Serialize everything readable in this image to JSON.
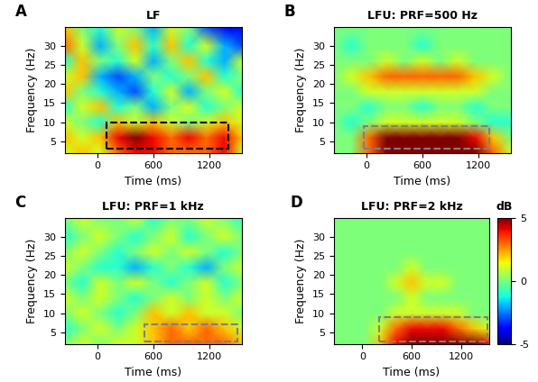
{
  "chart_data": [
    {
      "type": "heatmap",
      "label": "A",
      "title": "LF",
      "xlabel": "Time (ms)",
      "ylabel": "Frequency (Hz)",
      "x": [
        -350,
        -160,
        30,
        220,
        410,
        600,
        790,
        980,
        1170,
        1360,
        1550
      ],
      "y": [
        2,
        6,
        10,
        14,
        18,
        22,
        26,
        30,
        35
      ],
      "cells": [
        [
          1,
          2,
          1,
          3,
          4,
          4,
          3,
          3,
          3,
          4,
          1
        ],
        [
          2,
          1,
          2,
          4,
          5,
          4,
          3,
          4,
          3,
          4,
          2
        ],
        [
          1,
          0,
          -1,
          2,
          1,
          2,
          1,
          0,
          1,
          2,
          1
        ],
        [
          -1,
          1,
          2,
          -1,
          0,
          -2,
          0,
          1,
          -1,
          0,
          1
        ],
        [
          2,
          0,
          -1,
          -2,
          -3,
          -1,
          1,
          -2,
          0,
          1,
          -1
        ],
        [
          1,
          2,
          -2,
          -3,
          -2,
          0,
          -1,
          0,
          2,
          -1,
          0
        ],
        [
          -1,
          2,
          0,
          -1,
          1,
          -2,
          0,
          2,
          -1,
          -2,
          1
        ],
        [
          3,
          1,
          -2,
          0,
          2,
          -1,
          2,
          -1,
          1,
          -2,
          -3
        ],
        [
          2,
          0,
          -1,
          1,
          0,
          -2,
          1,
          0,
          -3,
          -4,
          -4
        ]
      ],
      "clim": [
        -5,
        5
      ],
      "xlim": [
        -350,
        1550
      ],
      "ylim": [
        2,
        35
      ],
      "xticks": [
        0,
        600,
        1200
      ],
      "yticks": [
        5,
        10,
        15,
        20,
        25,
        30
      ],
      "box": {
        "x": [
          100,
          1400
        ],
        "y": [
          3,
          10
        ],
        "color": "#000000"
      }
    },
    {
      "type": "heatmap",
      "label": "B",
      "title": "LFU: PRF=500 Hz",
      "xlabel": "Time (ms)",
      "ylabel": "Frequency (Hz)",
      "x": [
        -350,
        -160,
        30,
        220,
        410,
        600,
        790,
        980,
        1170,
        1360,
        1550
      ],
      "y": [
        2,
        6,
        10,
        14,
        18,
        22,
        26,
        30,
        35
      ],
      "cells": [
        [
          0,
          0,
          3,
          5,
          5,
          5,
          5,
          5,
          5,
          3,
          1
        ],
        [
          0,
          0,
          3,
          5,
          5,
          5,
          5,
          5,
          4,
          2,
          0
        ],
        [
          0,
          -1,
          0,
          1,
          1,
          1,
          1,
          1,
          0,
          -1,
          -1
        ],
        [
          0,
          0,
          -1,
          0,
          0,
          -1,
          0,
          0,
          -1,
          0,
          0
        ],
        [
          0,
          0,
          1,
          1,
          1,
          1,
          1,
          1,
          1,
          0,
          0
        ],
        [
          0,
          1,
          2,
          3,
          3,
          3,
          3,
          3,
          2,
          1,
          0
        ],
        [
          0,
          0,
          0,
          1,
          0,
          1,
          0,
          1,
          0,
          0,
          0
        ],
        [
          0,
          -1,
          0,
          0,
          0,
          -1,
          0,
          0,
          0,
          0,
          0
        ],
        [
          0,
          0,
          0,
          0,
          0,
          0,
          0,
          0,
          0,
          0,
          0
        ]
      ],
      "clim": [
        -5,
        5
      ],
      "xlim": [
        -350,
        1550
      ],
      "ylim": [
        2,
        35
      ],
      "xticks": [
        0,
        600,
        1200
      ],
      "yticks": [
        5,
        10,
        15,
        20,
        25,
        30
      ],
      "box": {
        "x": [
          -30,
          1320
        ],
        "y": [
          3,
          9
        ],
        "color": "#808080"
      }
    },
    {
      "type": "heatmap",
      "label": "C",
      "title": "LFU: PRF=1 kHz",
      "xlabel": "Time (ms)",
      "ylabel": "Frequency (Hz)",
      "x": [
        -350,
        -160,
        30,
        220,
        410,
        600,
        790,
        980,
        1170,
        1360,
        1550
      ],
      "y": [
        2,
        6,
        10,
        14,
        18,
        22,
        26,
        30,
        35
      ],
      "cells": [
        [
          0,
          1,
          0,
          1,
          1,
          2,
          3,
          3,
          3,
          3,
          2
        ],
        [
          -1,
          0,
          1,
          0,
          1,
          2,
          3,
          2,
          3,
          2,
          1
        ],
        [
          0,
          1,
          0,
          -1,
          0,
          2,
          1,
          2,
          1,
          1,
          0
        ],
        [
          1,
          0,
          1,
          0,
          -1,
          0,
          1,
          0,
          1,
          0,
          1
        ],
        [
          0,
          -1,
          1,
          0,
          1,
          0,
          -1,
          0,
          1,
          -1,
          0
        ],
        [
          1,
          0,
          -1,
          -1,
          -2,
          -1,
          0,
          -1,
          -2,
          0,
          1
        ],
        [
          0,
          1,
          0,
          -1,
          0,
          1,
          0,
          1,
          0,
          -1,
          0
        ],
        [
          -1,
          0,
          1,
          0,
          -1,
          0,
          1,
          -1,
          0,
          1,
          0
        ],
        [
          0,
          1,
          0,
          0,
          1,
          -1,
          0,
          0,
          1,
          0,
          -1
        ]
      ],
      "clim": [
        -5,
        5
      ],
      "xlim": [
        -350,
        1550
      ],
      "ylim": [
        2,
        35
      ],
      "xticks": [
        0,
        600,
        1200
      ],
      "yticks": [
        5,
        10,
        15,
        20,
        25,
        30
      ],
      "box": {
        "x": [
          500,
          1500
        ],
        "y": [
          2.5,
          7
        ],
        "color": "#808080"
      }
    },
    {
      "type": "heatmap",
      "label": "D",
      "title": "LFU: PRF=2 kHz",
      "xlabel": "Time (ms)",
      "ylabel": "Frequency (Hz)",
      "x": [
        -350,
        -160,
        30,
        220,
        410,
        600,
        790,
        980,
        1170,
        1360,
        1550
      ],
      "y": [
        2,
        6,
        10,
        14,
        18,
        22,
        26,
        30,
        35
      ],
      "cells": [
        [
          0,
          0,
          0,
          2,
          4,
          5,
          5,
          5,
          5,
          5,
          4
        ],
        [
          0,
          0,
          0,
          1,
          3,
          4,
          4,
          4,
          3,
          2,
          1
        ],
        [
          0,
          0,
          0,
          0,
          1,
          1,
          1,
          1,
          1,
          0,
          0
        ],
        [
          0,
          0,
          0,
          0,
          0,
          1,
          0,
          0,
          0,
          0,
          0
        ],
        [
          0,
          0,
          0,
          0,
          1,
          2,
          1,
          1,
          0,
          0,
          0
        ],
        [
          0,
          0,
          0,
          0,
          0,
          1,
          0,
          0,
          0,
          0,
          0
        ],
        [
          0,
          0,
          0,
          0,
          0,
          0,
          0,
          0,
          0,
          0,
          0
        ],
        [
          0,
          0,
          0,
          0,
          0,
          0,
          0,
          0,
          0,
          0,
          0
        ],
        [
          0,
          0,
          0,
          0,
          0,
          0,
          0,
          0,
          0,
          0,
          0
        ]
      ],
      "clim": [
        -5,
        5
      ],
      "xlim": [
        -350,
        1550
      ],
      "ylim": [
        2,
        35
      ],
      "xticks": [
        0,
        600,
        1200
      ],
      "yticks": [
        5,
        10,
        15,
        20,
        25,
        30
      ],
      "box": {
        "x": [
          200,
          1520
        ],
        "y": [
          2.5,
          9
        ],
        "color": "#808080"
      },
      "colorbar_label": "dB",
      "colorbar_ticks": [
        -5,
        0,
        5
      ]
    }
  ]
}
